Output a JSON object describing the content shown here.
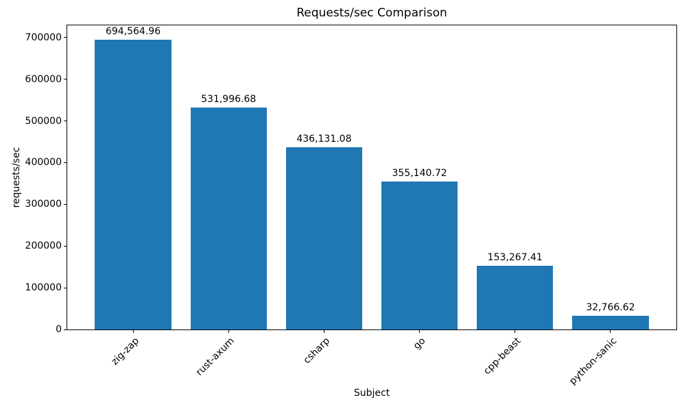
{
  "chart_data": {
    "type": "bar",
    "title": "Requests/sec Comparison",
    "xlabel": "Subject",
    "ylabel": "requests/sec",
    "categories": [
      "zig-zap",
      "rust-axum",
      "csharp",
      "go",
      "cpp-beast",
      "python-sanic"
    ],
    "values": [
      694564.96,
      531996.68,
      436131.08,
      355140.72,
      153267.41,
      32766.62
    ],
    "value_labels": [
      "694,564.96",
      "531,996.68",
      "436,131.08",
      "355,140.72",
      "153,267.41",
      "32,766.62"
    ],
    "ylim": [
      0,
      729293
    ],
    "yticks": [
      0,
      100000,
      200000,
      300000,
      400000,
      500000,
      600000,
      700000
    ],
    "ytick_labels": [
      "0",
      "100000",
      "200000",
      "300000",
      "400000",
      "500000",
      "600000",
      "700000"
    ],
    "bar_color": "#1f77b4",
    "bar_width_ratio": 0.8,
    "x_margin": 0.69,
    "grid": false,
    "legend": null,
    "xtick_rotation_deg": 45
  }
}
